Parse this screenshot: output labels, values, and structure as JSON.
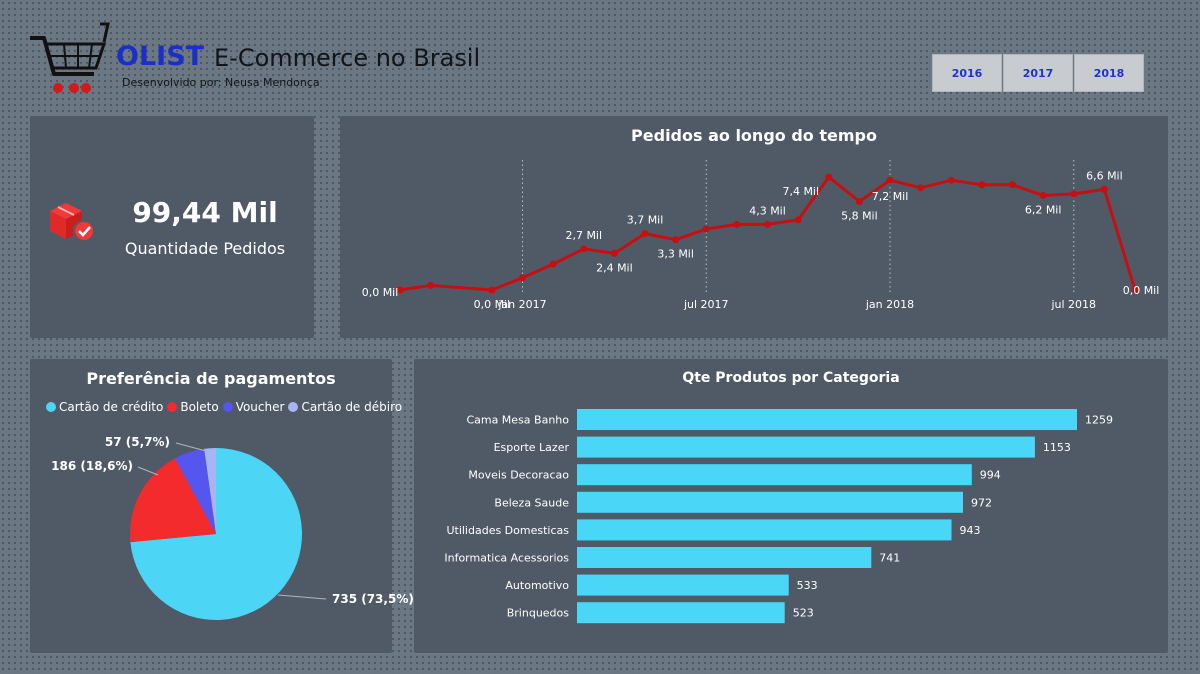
{
  "header": {
    "brand": "OLIST",
    "title": "E-Commerce no Brasil",
    "subtitle": "Desenvolvido por: Neusa Mendonça",
    "cart_icon": "shopping-cart-icon",
    "years": [
      "2016",
      "2017",
      "2018"
    ]
  },
  "kpi": {
    "value": "99,44 Mil",
    "label": "Quantidade  Pedidos",
    "icon": "boxes-check-icon"
  },
  "colors": {
    "line": "#c80e10",
    "pie_credit": "#4dd5f5",
    "pie_boleto": "#f42b2d",
    "pie_voucher": "#5555f0",
    "pie_debit": "#a7b6f2",
    "bar": "#49d6f7",
    "card_bg": "#505a66"
  },
  "line_chart": {
    "title": "Pedidos ao longo do tempo",
    "x_ticks": [
      "jan 2017",
      "jul 2017",
      "jan 2018",
      "jul 2018"
    ],
    "chart_data": {
      "type": "line",
      "x": [
        "2016-09",
        "2016-10",
        "2016-12",
        "2017-01",
        "2017-02",
        "2017-03",
        "2017-04",
        "2017-05",
        "2017-06",
        "2017-07",
        "2017-08",
        "2017-09",
        "2017-10",
        "2017-11",
        "2017-12",
        "2018-01",
        "2018-02",
        "2018-03",
        "2018-04",
        "2018-05",
        "2018-06",
        "2018-07",
        "2018-08",
        "2018-09"
      ],
      "y": [
        0.0,
        0.3,
        0.0,
        0.8,
        1.7,
        2.7,
        2.4,
        3.7,
        3.3,
        4.0,
        4.3,
        4.3,
        4.6,
        7.4,
        5.8,
        7.2,
        6.7,
        7.2,
        6.9,
        6.9,
        6.2,
        6.3,
        6.6,
        0.0
      ],
      "labels": [
        {
          "i": 0,
          "text": "0,0 Mil"
        },
        {
          "i": 2,
          "text": "0,0 Mil"
        },
        {
          "i": 5,
          "text": "2,7 Mil"
        },
        {
          "i": 6,
          "text": "2,4 Mil"
        },
        {
          "i": 7,
          "text": "3,7 Mil"
        },
        {
          "i": 8,
          "text": "3,3 Mil"
        },
        {
          "i": 11,
          "text": "4,3 Mil"
        },
        {
          "i": 13,
          "text": "7,4 Mil"
        },
        {
          "i": 14,
          "text": "5,8 Mil"
        },
        {
          "i": 15,
          "text": "7,2 Mil"
        },
        {
          "i": 20,
          "text": "6,2 Mil"
        },
        {
          "i": 22,
          "text": "6,6 Mil"
        },
        {
          "i": 23,
          "text": "0,0 Mil"
        }
      ],
      "ylim": [
        0,
        8
      ]
    }
  },
  "pie_chart": {
    "title": "Preferência de pagamentos",
    "legend": [
      "Cartão de crédito",
      "Boleto",
      "Voucher",
      "Cartão de débiro"
    ],
    "chart_data": {
      "type": "pie",
      "labels": [
        "Cartão de crédito",
        "Boleto",
        "Voucher",
        "Cartão de débiro"
      ],
      "values": [
        735,
        186,
        57,
        22
      ],
      "data_labels": [
        "735 (73,5%)",
        "186 (18,6%)",
        "57 (5,7%)",
        ""
      ]
    }
  },
  "bar_chart": {
    "title": "Qte Produtos por Categoria",
    "chart_data": {
      "type": "bar",
      "orientation": "horizontal",
      "categories": [
        "Cama Mesa Banho",
        "Esporte Lazer",
        "Moveis Decoracao",
        "Beleza Saude",
        "Utilidades Domesticas",
        "Informatica Acessorios",
        "Automotivo",
        "Brinquedos"
      ],
      "values": [
        1259,
        1153,
        994,
        972,
        943,
        741,
        533,
        523
      ]
    }
  }
}
